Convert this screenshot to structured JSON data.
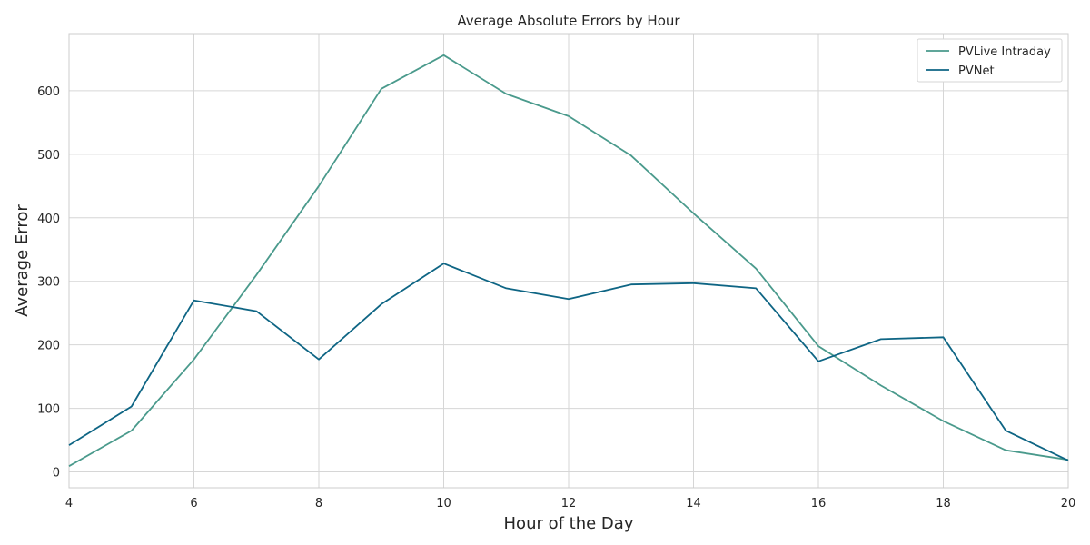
{
  "chart_data": {
    "type": "line",
    "title": "Average Absolute Errors by Hour",
    "xlabel": "Hour of the Day",
    "ylabel": "Average Error",
    "x": [
      4,
      5,
      6,
      7,
      8,
      9,
      10,
      11,
      12,
      13,
      14,
      15,
      16,
      17,
      18,
      19,
      20
    ],
    "xlim": [
      4,
      20
    ],
    "ylim": [
      -25,
      690
    ],
    "x_ticks": [
      4,
      6,
      8,
      10,
      12,
      14,
      16,
      18,
      20
    ],
    "y_ticks": [
      0,
      100,
      200,
      300,
      400,
      500,
      600
    ],
    "grid": true,
    "legend_position": "top-right",
    "series": [
      {
        "name": "PVLive Intraday",
        "color": "#4a9a8c",
        "values": [
          9,
          65,
          177,
          310,
          450,
          603,
          656,
          595,
          560,
          498,
          407,
          320,
          198,
          136,
          80,
          34,
          19
        ]
      },
      {
        "name": "PVNet",
        "color": "#0e6584",
        "values": [
          42,
          103,
          270,
          253,
          177,
          264,
          328,
          289,
          272,
          295,
          297,
          289,
          174,
          209,
          212,
          65,
          18
        ]
      }
    ]
  }
}
